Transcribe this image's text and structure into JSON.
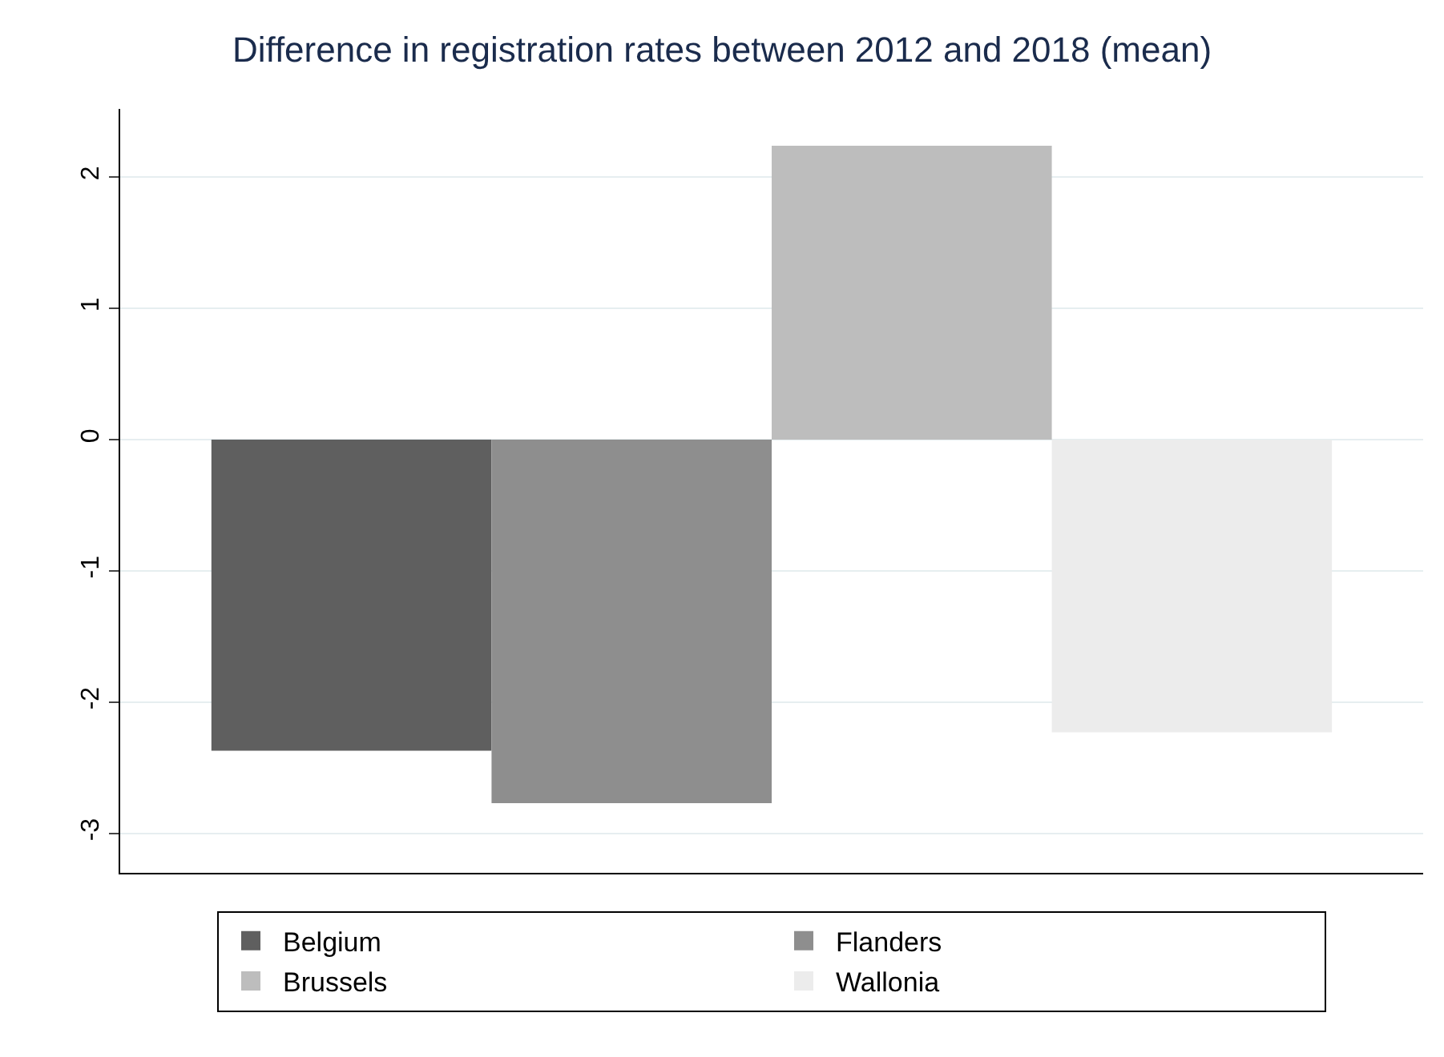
{
  "chart_data": {
    "type": "bar",
    "title": "Difference in registration rates between 2012 and 2018 (mean)",
    "categories": [
      null
    ],
    "series": [
      {
        "name": "Belgium",
        "color": "#5f5f5f",
        "values": [
          -2.37
        ]
      },
      {
        "name": "Flanders",
        "color": "#8e8e8e",
        "values": [
          -2.77
        ]
      },
      {
        "name": "Brussels",
        "color": "#bdbdbd",
        "values": [
          2.24
        ]
      },
      {
        "name": "Wallonia",
        "color": "#ececec",
        "values": [
          -2.23
        ]
      }
    ],
    "ylim": [
      -3.3,
      2.52
    ],
    "yticks": [
      -3,
      -2,
      -1,
      0,
      1,
      2
    ],
    "grid": "y",
    "legend": "bottom"
  }
}
